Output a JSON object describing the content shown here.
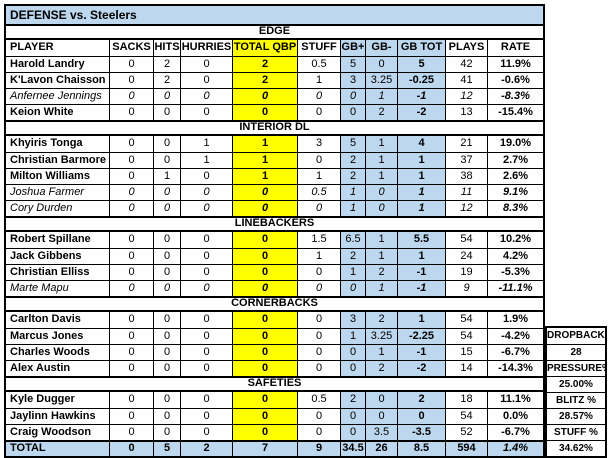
{
  "title": "DEFENSE vs. Steelers",
  "columns": [
    "PLAYER",
    "SACKS",
    "HITS",
    "HURRIES",
    "TOTAL QBP",
    "STUFF",
    "GB+",
    "GB-",
    "GB TOT",
    "PLAYS",
    "RATE"
  ],
  "sections": [
    {
      "label": "EDGE",
      "players": [
        {
          "name": "Harold Landry",
          "italic": false,
          "values": [
            "0",
            "2",
            "0",
            "2",
            "0.5",
            "5",
            "0",
            "5",
            "42",
            "11.9%"
          ]
        },
        {
          "name": "K'Lavon Chaisson",
          "italic": false,
          "values": [
            "0",
            "2",
            "0",
            "2",
            "1",
            "3",
            "3.25",
            "-0.25",
            "41",
            "-0.6%"
          ]
        },
        {
          "name": "Anfernee Jennings",
          "italic": true,
          "values": [
            "0",
            "0",
            "0",
            "0",
            "0",
            "0",
            "1",
            "-1",
            "12",
            "-8.3%"
          ]
        },
        {
          "name": "Keion White",
          "italic": false,
          "values": [
            "0",
            "0",
            "0",
            "0",
            "0",
            "0",
            "2",
            "-2",
            "13",
            "-15.4%"
          ]
        }
      ]
    },
    {
      "label": "INTERIOR DL",
      "players": [
        {
          "name": "Khyiris Tonga",
          "italic": false,
          "values": [
            "0",
            "0",
            "1",
            "1",
            "3",
            "5",
            "1",
            "4",
            "21",
            "19.0%"
          ]
        },
        {
          "name": "Christian Barmore",
          "italic": false,
          "values": [
            "0",
            "0",
            "1",
            "1",
            "0",
            "2",
            "1",
            "1",
            "37",
            "2.7%"
          ]
        },
        {
          "name": "Milton Williams",
          "italic": false,
          "values": [
            "0",
            "1",
            "0",
            "1",
            "1",
            "2",
            "1",
            "1",
            "38",
            "2.6%"
          ]
        },
        {
          "name": "Joshua Farmer",
          "italic": true,
          "values": [
            "0",
            "0",
            "0",
            "0",
            "0.5",
            "1",
            "0",
            "1",
            "11",
            "9.1%"
          ]
        },
        {
          "name": "Cory Durden",
          "italic": true,
          "values": [
            "0",
            "0",
            "0",
            "0",
            "0",
            "1",
            "0",
            "1",
            "12",
            "8.3%"
          ]
        }
      ]
    },
    {
      "label": "LINEBACKERS",
      "players": [
        {
          "name": "Robert Spillane",
          "italic": false,
          "values": [
            "0",
            "0",
            "0",
            "0",
            "1.5",
            "6.5",
            "1",
            "5.5",
            "54",
            "10.2%"
          ]
        },
        {
          "name": "Jack Gibbens",
          "italic": false,
          "values": [
            "0",
            "0",
            "0",
            "0",
            "1",
            "2",
            "1",
            "1",
            "24",
            "4.2%"
          ]
        },
        {
          "name": "Christian Elliss",
          "italic": false,
          "values": [
            "0",
            "0",
            "0",
            "0",
            "0",
            "1",
            "2",
            "-1",
            "19",
            "-5.3%"
          ]
        },
        {
          "name": "Marte Mapu",
          "italic": true,
          "values": [
            "0",
            "0",
            "0",
            "0",
            "0",
            "0",
            "1",
            "-1",
            "9",
            "-11.1%"
          ]
        }
      ]
    },
    {
      "label": "CORNERBACKS",
      "players": [
        {
          "name": "Carlton Davis",
          "italic": false,
          "values": [
            "0",
            "0",
            "0",
            "0",
            "0",
            "3",
            "2",
            "1",
            "54",
            "1.9%"
          ]
        },
        {
          "name": "Marcus Jones",
          "italic": false,
          "values": [
            "0",
            "0",
            "0",
            "0",
            "0",
            "1",
            "3.25",
            "-2.25",
            "54",
            "-4.2%"
          ]
        },
        {
          "name": "Charles Woods",
          "italic": false,
          "values": [
            "0",
            "0",
            "0",
            "0",
            "0",
            "0",
            "1",
            "-1",
            "15",
            "-6.7%"
          ]
        },
        {
          "name": "Alex Austin",
          "italic": false,
          "values": [
            "0",
            "0",
            "0",
            "0",
            "0",
            "0",
            "2",
            "-2",
            "14",
            "-14.3%"
          ]
        }
      ]
    },
    {
      "label": "SAFETIES",
      "players": [
        {
          "name": "Kyle Dugger",
          "italic": false,
          "values": [
            "0",
            "0",
            "0",
            "0",
            "0.5",
            "2",
            "0",
            "2",
            "18",
            "11.1%"
          ]
        },
        {
          "name": "Jaylinn Hawkins",
          "italic": false,
          "values": [
            "0",
            "0",
            "0",
            "0",
            "0",
            "0",
            "0",
            "0",
            "54",
            "0.0%"
          ]
        },
        {
          "name": "Craig Woodson",
          "italic": false,
          "values": [
            "0",
            "0",
            "0",
            "0",
            "0",
            "0",
            "3.5",
            "-3.5",
            "52",
            "-6.7%"
          ]
        }
      ]
    }
  ],
  "total": {
    "label": "TOTAL",
    "values": [
      "0",
      "5",
      "2",
      "7",
      "9",
      "34.5",
      "26",
      "8.5",
      "594",
      "1.4%"
    ]
  },
  "side_panel": {
    "rows": [
      "DROPBACKS",
      "28",
      "PRESSURE%",
      "25.00%",
      "BLITZ %",
      "28.57%",
      "STUFF %",
      "34.62%"
    ]
  },
  "colors": {
    "title_bar_blue": "#BDD7EE",
    "gb_column_blue": "#BDD7EE",
    "qbp_highlight_yellow": "#FFFF00",
    "grid_border": "#000000"
  }
}
